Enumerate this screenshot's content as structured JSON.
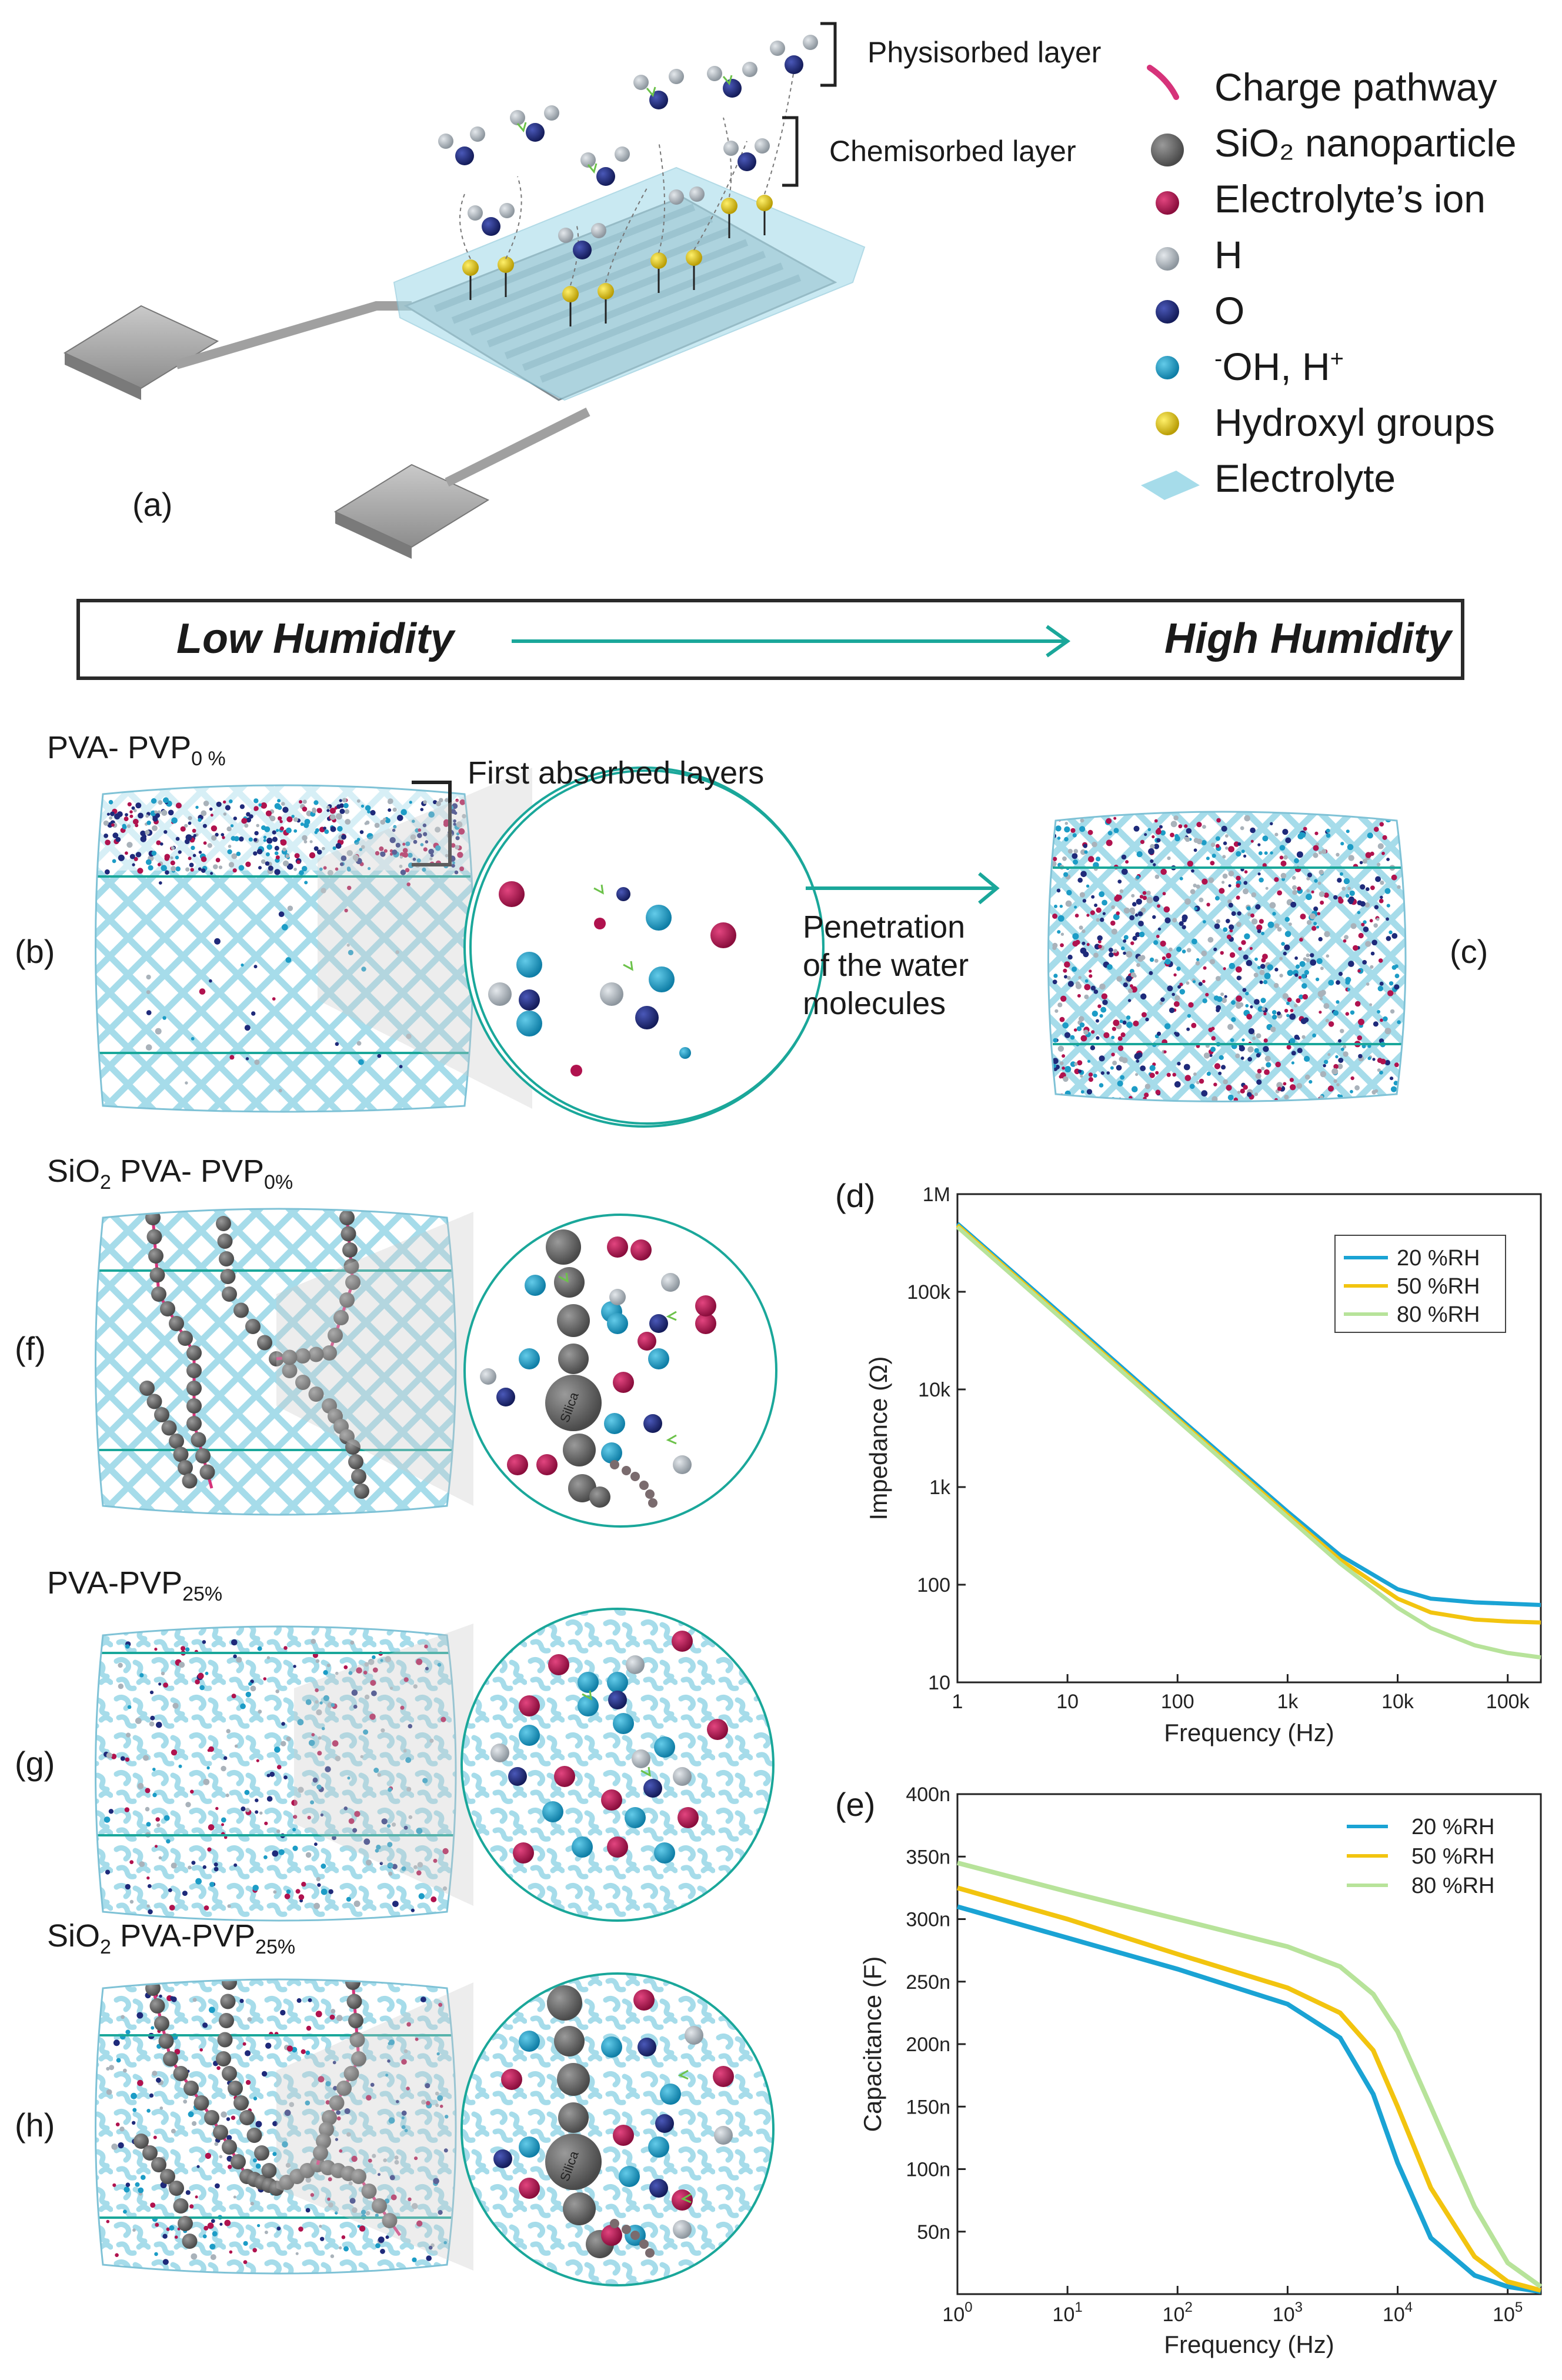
{
  "panel_a": {
    "label": "(a)",
    "physisorbed_label": "Physisorbed layer",
    "chemisorbed_label": "Chemisorbed layer"
  },
  "legend": {
    "charge_pathway": "Charge pathway",
    "sio2": "SiO₂ nanoparticle",
    "electrolyte_ion": "Electrolyte’s ion",
    "h": "H",
    "o": "O",
    "oh_h_pre": "-",
    "oh_h_main": "OH, H",
    "oh_h_sup": "+",
    "hydroxyl": "Hydroxyl groups",
    "electrolyte": "Electrolyte"
  },
  "colors": {
    "charge_pathway": "#d6337a",
    "sio2": "#5e5e5e",
    "electrolyte_ion": "#b0124e",
    "h": "#a9b2ba",
    "o": "#1f2a7a",
    "oh": "#1c9cc6",
    "hydroxyl": "#e6cd11",
    "electrolyte": "#a6dcea",
    "teal": "#1aa79a"
  },
  "humidity": {
    "low": "Low Humidity",
    "high": "High Humidity"
  },
  "panel_b": {
    "label": "(b)",
    "title_main": "PVA- PVP",
    "title_sub": "0 %",
    "first_layers": "First absorbed layers"
  },
  "penetration": {
    "line1": "Penetration",
    "line2": "of the water",
    "line3": "molecules"
  },
  "panel_c": {
    "label": "(c)"
  },
  "panel_f": {
    "label": "(f)",
    "title_pre": "SiO",
    "title_pre_sub": "2",
    "title_main": " PVA- PVP",
    "title_sub": "0%"
  },
  "panel_g": {
    "label": "(g)",
    "title_main": "PVA-PVP",
    "title_sub": "25%"
  },
  "panel_h": {
    "label": "(h)",
    "title_pre": "SiO",
    "title_pre_sub": "2",
    "title_main": " PVA-PVP",
    "title_sub": "25%"
  },
  "silica_label": "Silica",
  "chart_data": [
    {
      "panel": "(d)",
      "type": "line",
      "xlabel": "Frequency (Hz)",
      "ylabel": "Impedance (Ω)",
      "x_scale": "log",
      "y_scale": "log",
      "xlim": [
        1,
        200000
      ],
      "ylim": [
        10,
        1000000
      ],
      "x_ticks": [
        "1",
        "10",
        "100",
        "1k",
        "10k",
        "100k"
      ],
      "y_ticks": [
        "10",
        "100",
        "1k",
        "10k",
        "100k",
        "1M"
      ],
      "legend_position": "top-right",
      "series": [
        {
          "name": "20 %RH",
          "color": "#1aa3d4",
          "x": [
            1,
            10,
            100,
            1000,
            3000,
            10000,
            20000,
            50000,
            100000,
            200000
          ],
          "y": [
            500000,
            52000,
            5300,
            560,
            200,
            90,
            72,
            66,
            64,
            62
          ]
        },
        {
          "name": "50 %RH",
          "color": "#f2c40f",
          "x": [
            1,
            10,
            100,
            1000,
            3000,
            10000,
            20000,
            50000,
            100000,
            200000
          ],
          "y": [
            480000,
            49000,
            5000,
            520,
            180,
            72,
            52,
            44,
            42,
            41
          ]
        },
        {
          "name": "80 %RH",
          "color": "#b7e39a",
          "x": [
            1,
            10,
            100,
            1000,
            3000,
            10000,
            20000,
            50000,
            100000,
            200000
          ],
          "y": [
            460000,
            47000,
            4800,
            490,
            165,
            58,
            36,
            24,
            20,
            18
          ]
        }
      ]
    },
    {
      "panel": "(e)",
      "type": "line",
      "xlabel": "Frequency (Hz)",
      "ylabel": "Capacitance (F)",
      "x_scale": "log",
      "xlim": [
        1,
        200000
      ],
      "ylim": [
        0,
        400
      ],
      "y_unit": "n",
      "x_ticks": [
        "10^0",
        "10^1",
        "10^2",
        "10^3",
        "10^4",
        "10^5"
      ],
      "y_ticks": [
        "50n",
        "100n",
        "150n",
        "200n",
        "250n",
        "300n",
        "350n",
        "400n"
      ],
      "legend_position": "top-right",
      "series": [
        {
          "name": "20 %RH",
          "color": "#1aa3d4",
          "x": [
            1,
            10,
            100,
            1000,
            3000,
            6000,
            10000,
            20000,
            50000,
            100000,
            200000
          ],
          "y": [
            310,
            285,
            260,
            232,
            205,
            160,
            105,
            45,
            15,
            6,
            2
          ]
        },
        {
          "name": "50 %RH",
          "color": "#f2c40f",
          "x": [
            1,
            10,
            100,
            1000,
            3000,
            6000,
            10000,
            20000,
            50000,
            100000,
            200000
          ],
          "y": [
            325,
            300,
            272,
            245,
            225,
            195,
            150,
            85,
            30,
            10,
            3
          ]
        },
        {
          "name": "80 %RH",
          "color": "#b7e39a",
          "x": [
            1,
            10,
            100,
            1000,
            3000,
            6000,
            10000,
            20000,
            50000,
            100000,
            200000
          ],
          "y": [
            345,
            322,
            300,
            278,
            262,
            240,
            210,
            150,
            70,
            25,
            6
          ]
        }
      ]
    }
  ]
}
